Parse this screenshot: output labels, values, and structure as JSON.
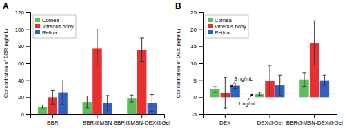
{
  "chart_data": [
    {
      "type": "bar",
      "title": "A",
      "ylabel": "Concentration of BBR (ng/mL)",
      "categories": [
        "BBR",
        "BBR@MSN",
        "BBR@MSN-DEX@Gel"
      ],
      "series": [
        {
          "name": "Cornea",
          "color": "#5CBF5C",
          "values": [
            8.5,
            14.5,
            18.5
          ],
          "errors": [
            2.5,
            7.0,
            4.0
          ]
        },
        {
          "name": "Vitreous body",
          "color": "#E83030",
          "values": [
            20.0,
            77.5,
            76.0
          ],
          "errors": [
            8.0,
            22.0,
            14.0
          ]
        },
        {
          "name": "Retina",
          "color": "#3060C0",
          "values": [
            25.5,
            13.0,
            13.0
          ],
          "errors": [
            14.0,
            9.0,
            10.0
          ]
        }
      ],
      "ylim": [
        0,
        120
      ],
      "yticks": [
        0,
        20,
        40,
        60,
        80,
        100,
        120
      ],
      "grid": false,
      "legend": "upper left"
    },
    {
      "type": "bar",
      "title": "B",
      "ylabel": "Concentration of DEX (ng/mL)",
      "categories": [
        "DEX",
        "DEX@Gel",
        "BBR@MSN-DEX@Gel"
      ],
      "series": [
        {
          "name": "Cornea",
          "color": "#5CBF5C",
          "values": [
            2.3,
            1.0,
            5.2
          ],
          "errors": [
            0.8,
            0.5,
            2.0
          ]
        },
        {
          "name": "Vitreous body",
          "color": "#E83030",
          "values": [
            1.3,
            4.9,
            16.0
          ],
          "errors": [
            4.5,
            4.5,
            6.5
          ]
        },
        {
          "name": "Retina",
          "color": "#3060C0",
          "values": [
            3.4,
            3.5,
            5.0
          ],
          "errors": [
            0.8,
            3.0,
            1.5
          ]
        }
      ],
      "ylim": [
        -5,
        25
      ],
      "yticks": [
        -5,
        0,
        5,
        10,
        15,
        20,
        25
      ],
      "grid": false,
      "legend": "upper left",
      "hlines": [
        {
          "value": 3.0,
          "color": "#555555",
          "line_style": "dashed"
        },
        {
          "value": 1.0,
          "color": "#555555",
          "line_style": "dashed"
        }
      ],
      "annotations": [
        {
          "text": "3 ng/mL",
          "y": 3.0
        },
        {
          "text": "1 ng/mL",
          "y": 1.0
        }
      ]
    }
  ]
}
